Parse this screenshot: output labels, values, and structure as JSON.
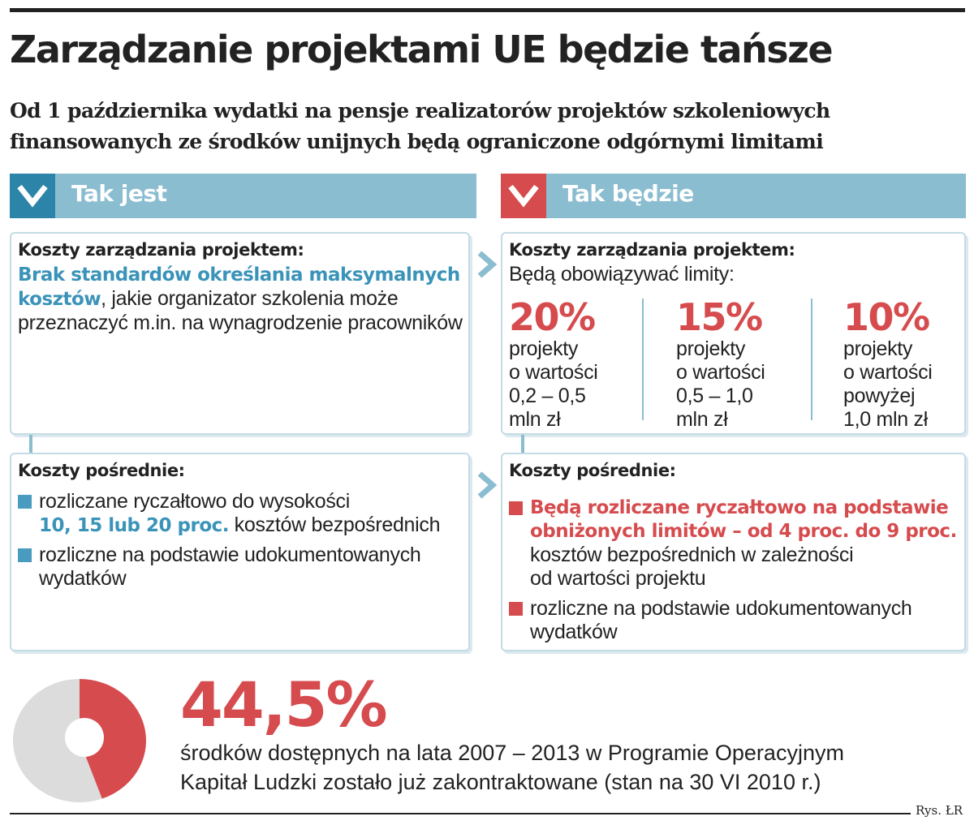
{
  "header": {
    "title": "Zarządzanie projektami UE będzie tańsze",
    "subtitle_line1": "Od 1 października wydatki na pensje realizatorów projektów szkoleniowych",
    "subtitle_line2": "finansowanych ze środków unijnych będą ograniczone odgórnymi limitami"
  },
  "left_column": {
    "label": "Tak jest",
    "management": {
      "title": "Koszty zarządzania projektem:",
      "highlight": "Brak standardów określania maksymalnych kosztów",
      "text": ", jakie organizator szkolenia może przeznaczyć m.in. na wynagrodzenie pracowników"
    },
    "indirect": {
      "title": "Koszty pośrednie:",
      "item1_before": "rozliczane ryczałtowo do wysokości",
      "item1_highlight": "10, 15 lub 20 proc.",
      "item1_after": " kosztów bezpośrednich",
      "item2": "rozliczne na podstawie udokumentowanych wydatków"
    }
  },
  "right_column": {
    "label": "Tak będzie",
    "management": {
      "title": "Koszty zarządzania projektem:",
      "intro": "Będą obowiązywać limity:"
    },
    "indirect": {
      "title": "Koszty pośrednie:",
      "item1_highlight_line1": "Będą rozliczane ryczałtowo na podstawie",
      "item1_highlight_line2": "obniżonych limitów – od 4 proc. do 9 proc.",
      "item1_rest_line1": "kosztów bezpośrednich w zależności",
      "item1_rest_line2": "od wartości projektu",
      "item2_line1": "rozliczne na podstawie udokumentowanych",
      "item2_line2": "wydatków"
    }
  },
  "chart_data": [
    {
      "type": "table",
      "title": "Koszty zarządzania projektem: Będą obowiązywać limity:",
      "rows": [
        {
          "value": "20%",
          "line1": "projekty",
          "line2": "o wartości",
          "line3": "0,2 – 0,5",
          "line4": "mln zł"
        },
        {
          "value": "15%",
          "line1": "projekty",
          "line2": "o wartości",
          "line3": "0,5 – 1,0",
          "line4": "mln zł"
        },
        {
          "value": "10%",
          "line1": "projekty",
          "line2": "o wartości",
          "line3": "powyżej",
          "line4": "1,0 mln zł"
        }
      ]
    },
    {
      "type": "pie",
      "title": "",
      "value_label": "44,5%",
      "values": [
        44.5,
        55.5
      ],
      "colors": [
        "#d64b4e",
        "#dcdcdc"
      ],
      "description_line1": "środków dostępnych na lata 2007 – 2013 w Programie Operacyjnym",
      "description_line2": "Kapitał Ludzki zostało już zakontraktowane (stan na 30 VI 2010 r.)"
    }
  ],
  "credit": "Rys. ŁR",
  "colors": {
    "accent_blue": "#2d84a9",
    "light_blue": "#8bbdd0",
    "accent_red": "#d64b4e",
    "grey": "#dcdcdc"
  }
}
